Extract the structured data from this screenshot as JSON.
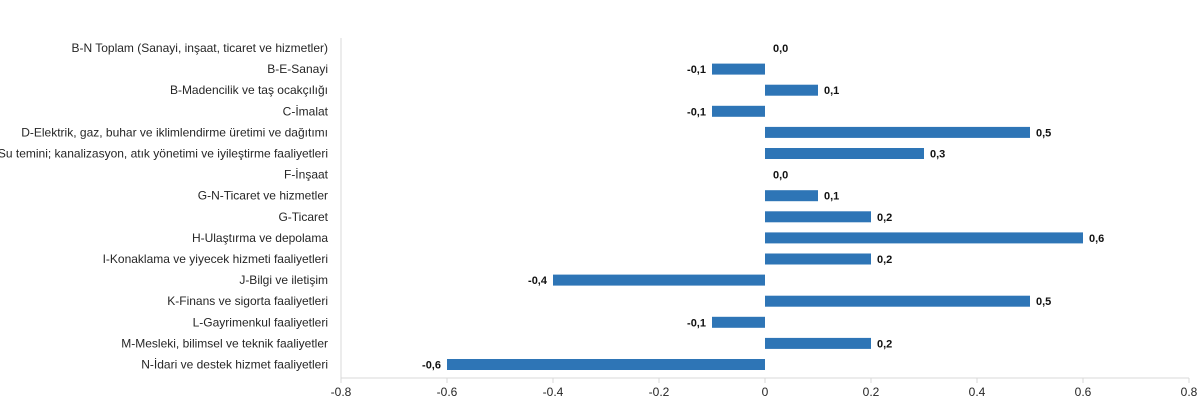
{
  "chart_data": {
    "type": "bar",
    "orientation": "horizontal",
    "categories": [
      "B-N Toplam (Sanayi, inşaat, ticaret ve hizmetler)",
      "B-E-Sanayi",
      "B-Madencilik ve taş ocakçılığı",
      "C-İmalat",
      "D-Elektrik, gaz, buhar ve iklimlendirme üretimi ve dağıtımı",
      "E-Su temini; kanalizasyon, atık yönetimi ve iyileştirme faaliyetleri",
      "F-İnşaat",
      "G-N-Ticaret ve hizmetler",
      "G-Ticaret",
      "H-Ulaştırma ve depolama",
      "I-Konaklama ve yiyecek hizmeti faaliyetleri",
      "J-Bilgi ve iletişim",
      "K-Finans ve sigorta faaliyetleri",
      "L-Gayrimenkul faaliyetleri",
      "M-Mesleki, bilimsel ve teknik faaliyetler",
      "N-İdari ve destek hizmet faaliyetleri"
    ],
    "values": [
      0.0,
      -0.1,
      0.1,
      -0.1,
      0.5,
      0.3,
      0.0,
      0.1,
      0.2,
      0.6,
      0.2,
      -0.4,
      0.5,
      -0.1,
      0.2,
      -0.6
    ],
    "value_labels": [
      "0,0",
      "-0,1",
      "0,1",
      "-0,1",
      "0,5",
      "0,3",
      "0,0",
      "0,1",
      "0,2",
      "0,6",
      "0,2",
      "-0,4",
      "0,5",
      "-0,1",
      "0,2",
      "-0,6"
    ],
    "xlim": [
      -0.8,
      0.8
    ],
    "xticks": [
      -0.8,
      -0.6,
      -0.4,
      -0.2,
      0,
      0.2,
      0.4,
      0.6,
      0.8
    ],
    "xtick_labels": [
      "-0.8",
      "-0.6",
      "-0.4",
      "-0.2",
      "0",
      "0.2",
      "0.4",
      "0.6",
      "0.8"
    ],
    "title": "",
    "xlabel": "",
    "ylabel": "",
    "grid": false,
    "legend": "none",
    "bar_color": "#2E75B6",
    "axis_color": "#D9D9D9"
  }
}
